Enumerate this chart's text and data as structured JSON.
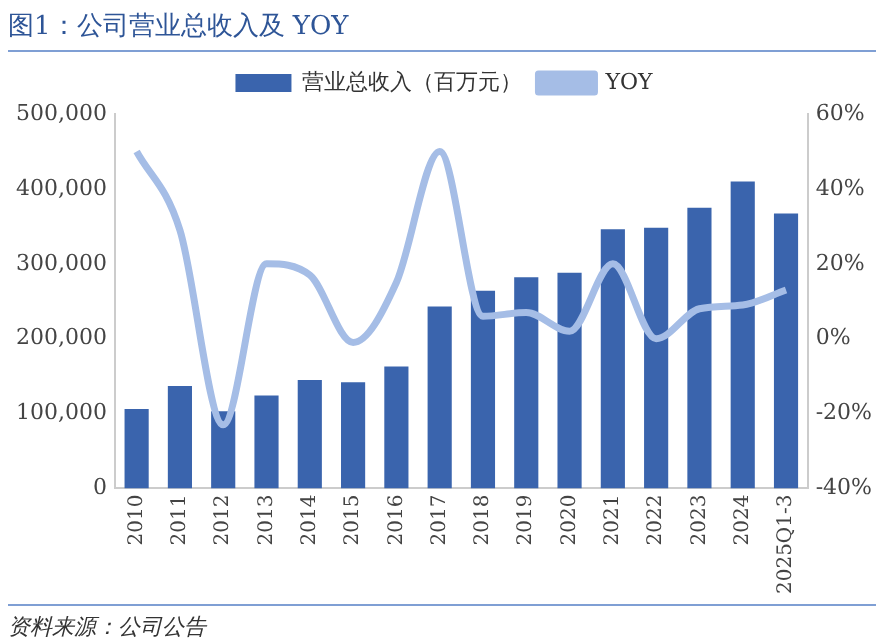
{
  "chart_data": {
    "type": "bar",
    "title": "图1：公司营业总收入及 YOY",
    "categories": [
      "2010",
      "2011",
      "2012",
      "2013",
      "2014",
      "2015",
      "2016",
      "2017",
      "2018",
      "2019",
      "2020",
      "2021",
      "2022",
      "2023",
      "2024",
      "2025Q1-3"
    ],
    "series": [
      {
        "name": "营业总收入（百万元）",
        "color": "#3a64ad",
        "values": [
          106000,
          137000,
          103000,
          124000,
          145000,
          142000,
          163000,
          243000,
          264000,
          282000,
          288000,
          346000,
          348000,
          375000,
          410000,
          367000
        ]
      },
      {
        "name": "YOY",
        "type": "line",
        "axis": "y2",
        "color": "#a5bde6",
        "values": [
          50,
          29,
          -23,
          20,
          17,
          -1,
          15,
          50,
          6,
          7,
          2,
          20,
          0,
          8,
          9,
          13
        ]
      }
    ],
    "ylim": [
      0,
      500000
    ],
    "yticks": [
      {
        "value": 0,
        "label": "0"
      },
      {
        "value": 100000,
        "label": "100,000"
      },
      {
        "value": 200000,
        "label": "200,000"
      },
      {
        "value": 300000,
        "label": "300,000"
      },
      {
        "value": 400000,
        "label": "400,000"
      },
      {
        "value": 500000,
        "label": "500,000"
      }
    ],
    "y2lim": [
      -40,
      60
    ],
    "y2ticks": [
      {
        "value": -40,
        "label": "-40%"
      },
      {
        "value": -20,
        "label": "-20%"
      },
      {
        "value": 0,
        "label": "0%"
      },
      {
        "value": 20,
        "label": "20%"
      },
      {
        "value": 40,
        "label": "40%"
      },
      {
        "value": 60,
        "label": "60%"
      }
    ],
    "grid": false,
    "legend": "top",
    "marker": "none",
    "annotations": [
      "资料来源：公司公告"
    ]
  }
}
